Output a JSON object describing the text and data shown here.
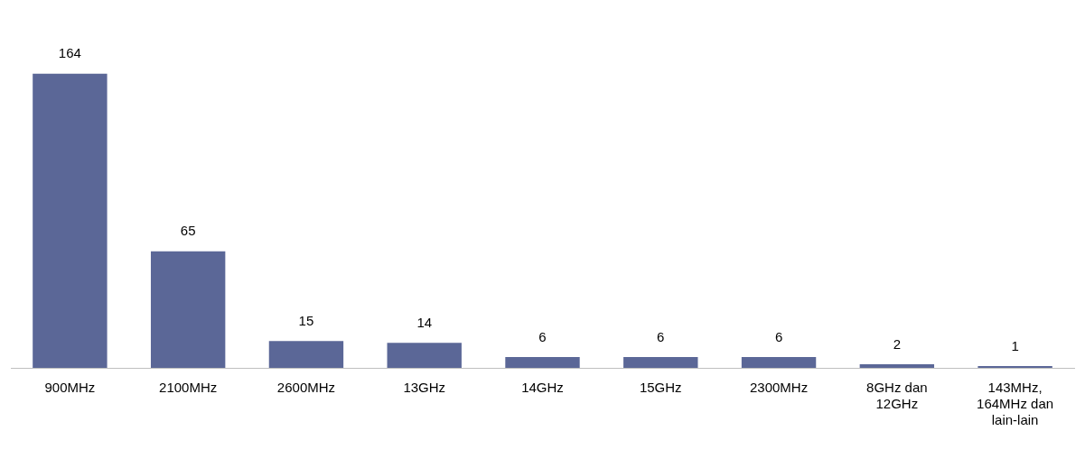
{
  "chart_data": {
    "type": "bar",
    "categories": [
      "900MHz",
      "2100MHz",
      "2600MHz",
      "13GHz",
      "14GHz",
      "15GHz",
      "2300MHz",
      "8GHz dan 12GHz",
      "143MHz, 164MHz dan lain-lain"
    ],
    "values": [
      164,
      65,
      15,
      14,
      6,
      6,
      6,
      2,
      1
    ],
    "color": "#5b6797",
    "data_labels": true,
    "grid": false,
    "legend": false
  }
}
